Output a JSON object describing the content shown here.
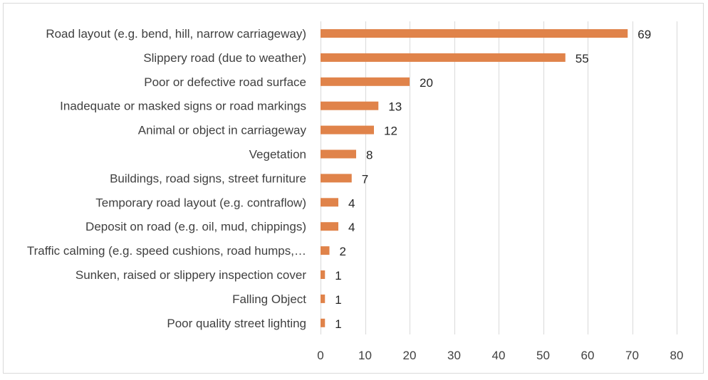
{
  "chart_data": {
    "type": "bar",
    "orientation": "horizontal",
    "title": "",
    "xlabel": "",
    "ylabel": "",
    "categories": [
      "Road layout (e.g. bend, hill, narrow carriageway)",
      "Slippery road (due to weather)",
      "Poor or defective road surface",
      "Inadequate or masked signs or road markings",
      "Animal or object in carriageway",
      "Vegetation",
      "Buildings, road signs, street furniture",
      "Temporary road layout (e.g. contraflow)",
      "Deposit on road (e.g. oil, mud, chippings)",
      "Traffic calming (e.g. speed cushions, road humps,…",
      "Sunken, raised or slippery inspection cover",
      "Falling Object",
      "Poor quality street lighting"
    ],
    "values": [
      69,
      55,
      20,
      13,
      12,
      8,
      7,
      4,
      4,
      2,
      1,
      1,
      1
    ],
    "xlim": [
      0,
      80
    ],
    "xticks": [
      0,
      10,
      20,
      30,
      40,
      50,
      60,
      70,
      80
    ],
    "grid": "vertical",
    "legend": "none",
    "bar_color": "#E0834A"
  }
}
